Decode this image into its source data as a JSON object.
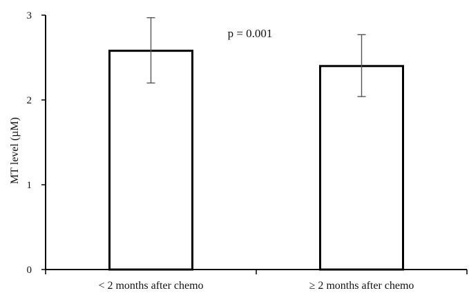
{
  "chart_data": {
    "type": "bar",
    "categories": [
      "< 2 months after chemo",
      "≥ 2 months after chemo"
    ],
    "values": [
      2.58,
      2.4
    ],
    "error_bars": [
      {
        "low": 2.2,
        "high": 2.97
      },
      {
        "low": 2.04,
        "high": 2.77
      }
    ],
    "title": "",
    "xlabel": "",
    "ylabel": "MT level (µM)",
    "ylim": [
      0,
      3
    ],
    "yticks": [
      0,
      1,
      2,
      3
    ],
    "annotation": "p = 0.001",
    "grid": false,
    "legend": "none",
    "colors": {
      "bar_fill": "#ffffff",
      "bar_stroke": "#000000",
      "error_bar": "#555555"
    }
  }
}
